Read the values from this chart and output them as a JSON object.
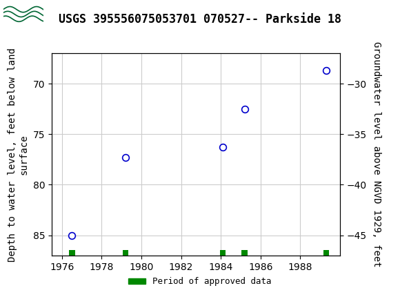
{
  "title": "USGS 395556075053701 070527-- Parkside 18",
  "x_data": [
    1976.5,
    1979.2,
    1984.1,
    1985.2,
    1989.3
  ],
  "y_data": [
    85.0,
    77.3,
    76.3,
    72.5,
    68.7
  ],
  "xlim": [
    1975.5,
    1990.0
  ],
  "ylim_left": [
    87.0,
    67.0
  ],
  "ylim_right": [
    -47.0,
    -27.0
  ],
  "xticks": [
    1976,
    1978,
    1980,
    1982,
    1984,
    1986,
    1988
  ],
  "yticks_left": [
    70,
    75,
    80,
    85
  ],
  "yticks_right": [
    -30,
    -35,
    -40,
    -45
  ],
  "ylabel_left": "Depth to water level, feet below land\nsurface",
  "ylabel_right": "Groundwater level above NGVD 1929, feet",
  "marker_color": "#0000cc",
  "marker_facecolor": "white",
  "marker_style": "o",
  "marker_size": 7,
  "grid_color": "#cccccc",
  "background_color": "#ffffff",
  "header_color": "#006633",
  "legend_label": "Period of approved data",
  "legend_color": "#008800",
  "green_bar_x": [
    1976.5,
    1979.2,
    1984.1,
    1985.2,
    1989.3
  ],
  "title_fontsize": 12,
  "tick_fontsize": 10,
  "label_fontsize": 10
}
